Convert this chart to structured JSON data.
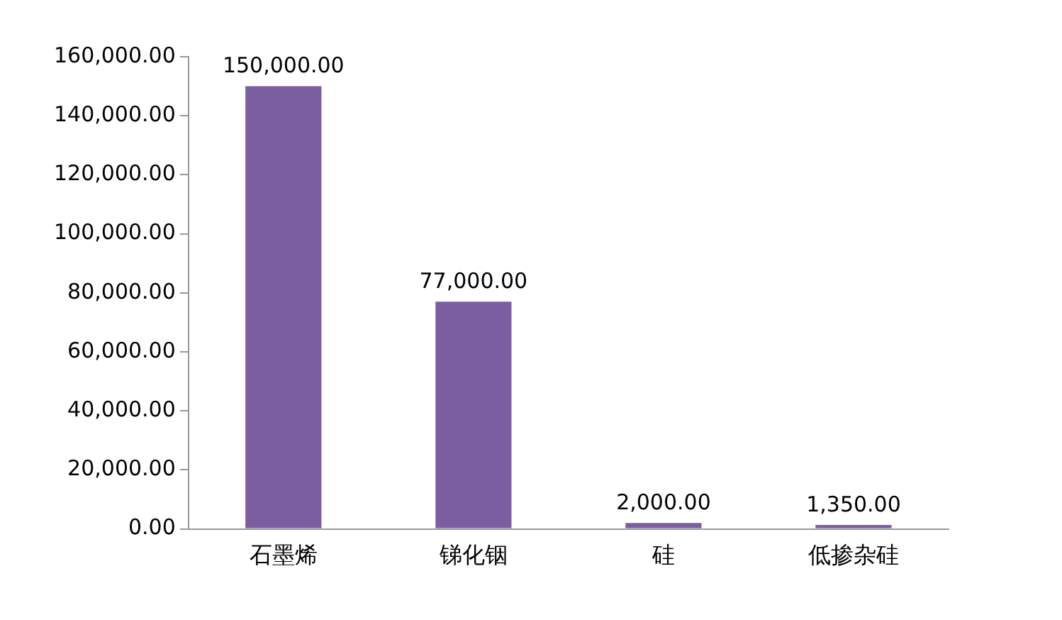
{
  "chart_data": {
    "type": "bar",
    "categories": [
      "石墨烯",
      "锑化铟",
      "硅",
      "低掺杂硅"
    ],
    "values": [
      150000,
      77000,
      2000,
      1350
    ],
    "value_labels": [
      "150,000.00",
      "77,000.00",
      "2,000.00",
      "1,350.00"
    ],
    "color": "#7b5ea0",
    "ylim": [
      0,
      160000
    ],
    "yticks": [
      {
        "value": 0,
        "label": "0.00"
      },
      {
        "value": 20000,
        "label": "20,000.00"
      },
      {
        "value": 40000,
        "label": "40,000.00"
      },
      {
        "value": 60000,
        "label": "60,000.00"
      },
      {
        "value": 80000,
        "label": "80,000.00"
      },
      {
        "value": 100000,
        "label": "100,000.00"
      },
      {
        "value": 120000,
        "label": "120,000.00"
      },
      {
        "value": 140000,
        "label": "140,000.00"
      },
      {
        "value": 160000,
        "label": "160,000.00"
      }
    ],
    "grid": false,
    "legend": false
  }
}
